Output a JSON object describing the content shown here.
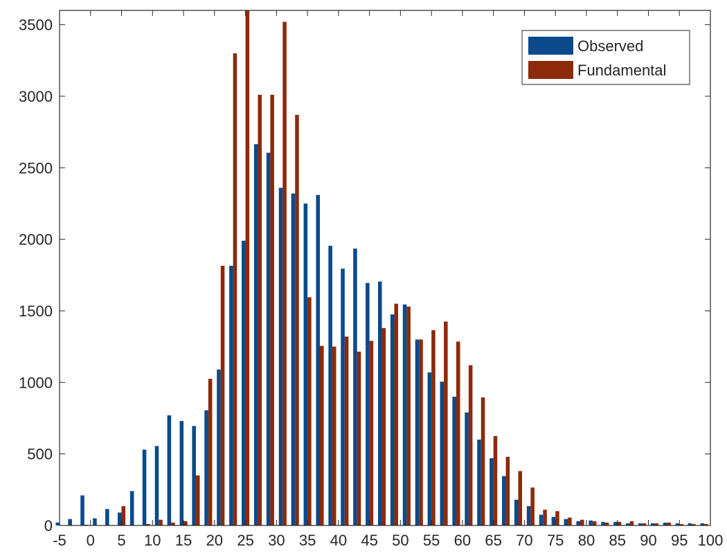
{
  "chart_data": {
    "type": "bar",
    "title": "",
    "xlabel": "",
    "ylabel": "",
    "x": [
      -5,
      -3,
      -1,
      1,
      3,
      5,
      7,
      9,
      11,
      13,
      15,
      17,
      19,
      21,
      23,
      25,
      27,
      29,
      31,
      33,
      35,
      37,
      39,
      41,
      43,
      45,
      47,
      49,
      51,
      53,
      55,
      57,
      59,
      61,
      63,
      65,
      67,
      69,
      71,
      73,
      75,
      77,
      79,
      81,
      83,
      85,
      87,
      89,
      91,
      93,
      95,
      97,
      99
    ],
    "xlim": [
      -5,
      100
    ],
    "ylim": [
      0,
      3600
    ],
    "xticks": [
      -5,
      0,
      5,
      10,
      15,
      20,
      25,
      30,
      35,
      40,
      45,
      50,
      55,
      60,
      65,
      70,
      75,
      80,
      85,
      90,
      95,
      100
    ],
    "yticks": [
      0,
      500,
      1000,
      1500,
      2000,
      2500,
      3000,
      3500
    ],
    "grid": false,
    "legend_position": "top-right",
    "colors": {
      "observed": "#0a4a8c",
      "fundamental": "#8c2a0a",
      "axis": "#262626"
    },
    "series": [
      {
        "name": "Observed",
        "values": [
          20,
          45,
          210,
          50,
          115,
          90,
          240,
          530,
          555,
          770,
          730,
          695,
          805,
          1090,
          1815,
          1990,
          2665,
          2605,
          2360,
          2320,
          2250,
          2310,
          1955,
          1795,
          1935,
          1695,
          1705,
          1475,
          1545,
          1300,
          1070,
          1005,
          900,
          790,
          600,
          470,
          345,
          180,
          135,
          75,
          60,
          45,
          30,
          35,
          25,
          25,
          15,
          15,
          15,
          20,
          15,
          15,
          15
        ]
      },
      {
        "name": "Fundamental",
        "values": [
          0,
          0,
          5,
          0,
          0,
          135,
          0,
          10,
          40,
          20,
          30,
          350,
          1025,
          1815,
          3300,
          3600,
          3010,
          3010,
          3520,
          2870,
          1595,
          1255,
          1250,
          1320,
          1215,
          1290,
          1380,
          1550,
          1530,
          1300,
          1365,
          1425,
          1285,
          1120,
          895,
          625,
          480,
          380,
          265,
          110,
          100,
          55,
          40,
          30,
          20,
          25,
          30,
          15,
          15,
          20,
          10,
          10,
          10
        ]
      }
    ]
  }
}
